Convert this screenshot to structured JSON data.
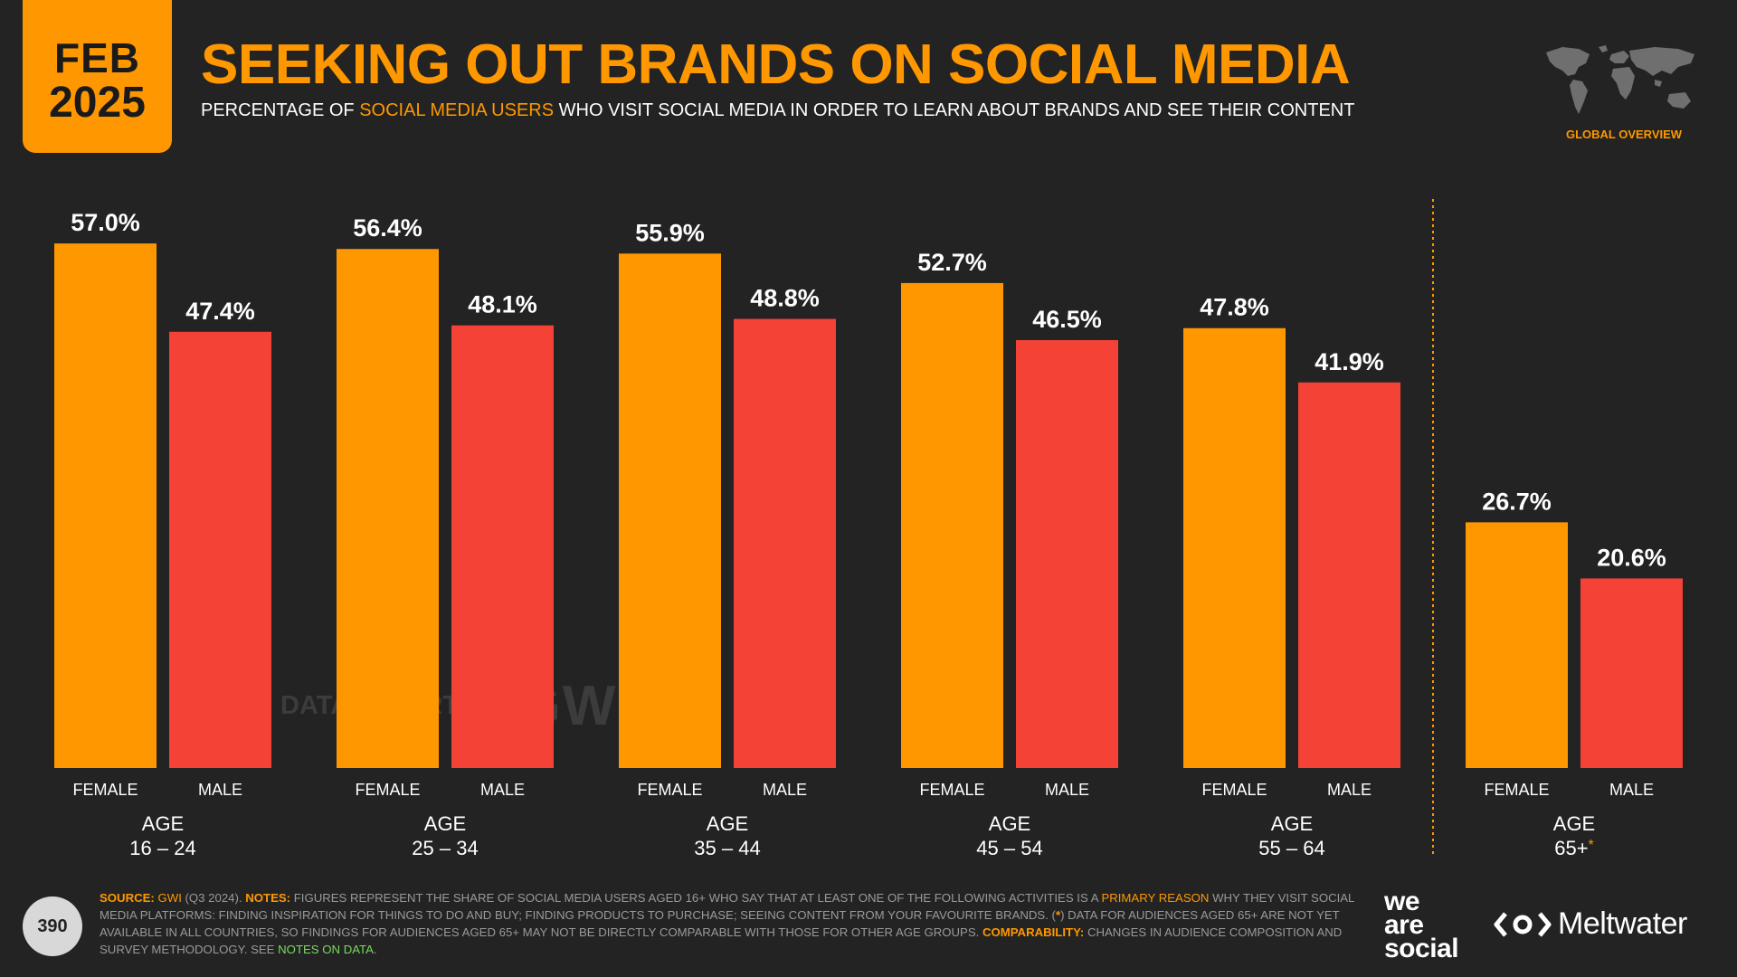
{
  "badge": {
    "month": "FEB",
    "year": "2025"
  },
  "title": "SEEKING OUT BRANDS ON SOCIAL MEDIA",
  "subtitle": {
    "part1": "PERCENTAGE OF ",
    "highlight": "SOCIAL MEDIA USERS",
    "part2": " WHO VISIT SOCIAL MEDIA IN ORDER TO LEARN ABOUT BRANDS AND SEE THEIR CONTENT"
  },
  "region_label": "GLOBAL OVERVIEW",
  "colors": {
    "accent": "#ff9800",
    "female": "#ff9800",
    "male": "#f44336",
    "background": "#232323"
  },
  "chart_data": {
    "type": "bar",
    "title": "SEEKING OUT BRANDS ON SOCIAL MEDIA",
    "ylabel": "",
    "xlabel": "",
    "ylim": [
      0,
      60
    ],
    "grid": false,
    "series_names": [
      "FEMALE",
      "MALE"
    ],
    "age_prefix": "AGE",
    "groups": [
      {
        "age": "16 – 24",
        "female": 57.0,
        "male": 47.4,
        "female_label": "57.0%",
        "male_label": "47.4%"
      },
      {
        "age": "25 – 34",
        "female": 56.4,
        "male": 48.1,
        "female_label": "56.4%",
        "male_label": "48.1%"
      },
      {
        "age": "35 – 44",
        "female": 55.9,
        "male": 48.8,
        "female_label": "55.9%",
        "male_label": "48.8%"
      },
      {
        "age": "45 – 54",
        "female": 52.7,
        "male": 46.5,
        "female_label": "52.7%",
        "male_label": "46.5%"
      },
      {
        "age": "55 – 64",
        "female": 47.8,
        "male": 41.9,
        "female_label": "47.8%",
        "male_label": "41.9%"
      },
      {
        "age": "65+",
        "age_marker": "*",
        "female": 26.7,
        "male": 20.6,
        "female_label": "26.7%",
        "male_label": "20.6%"
      }
    ]
  },
  "watermark": {
    "datareportal": "DATAREPORTAL",
    "gwi": "GWI."
  },
  "page_number": "390",
  "footnote": {
    "source_label": "SOURCE:",
    "source_name": "GWI",
    "source_detail": " (Q3 2024). ",
    "notes_label": "NOTES:",
    "notes_text_1": " FIGURES REPRESENT THE SHARE OF SOCIAL MEDIA USERS AGED 16+ WHO SAY THAT AT LEAST ONE OF THE FOLLOWING ACTIVITIES IS A ",
    "primary_reason": "PRIMARY REASON",
    "notes_text_2": " WHY THEY VISIT SOCIAL MEDIA PLATFORMS: FINDING INSPIRATION FOR THINGS TO DO AND BUY; FINDING PRODUCTS TO PURCHASE; SEEING CONTENT FROM YOUR FAVOURITE BRANDS. (",
    "asterisk": "*",
    "notes_text_3": ") DATA FOR AUDIENCES AGED 65+ ARE NOT YET AVAILABLE IN ALL COUNTRIES, SO FINDINGS FOR AUDIENCES AGED 65+ MAY NOT BE DIRECTLY COMPARABLE WITH THOSE FOR OTHER AGE GROUPS. ",
    "comparability_label": "COMPARABILITY:",
    "comparability_text": " CHANGES IN AUDIENCE COMPOSITION AND SURVEY METHODOLOGY. SEE ",
    "notes_link": "NOTES ON DATA",
    "end": "."
  },
  "logos": {
    "was_line1": "we",
    "was_line2": "are",
    "was_line3": "social",
    "meltwater": "Meltwater"
  }
}
